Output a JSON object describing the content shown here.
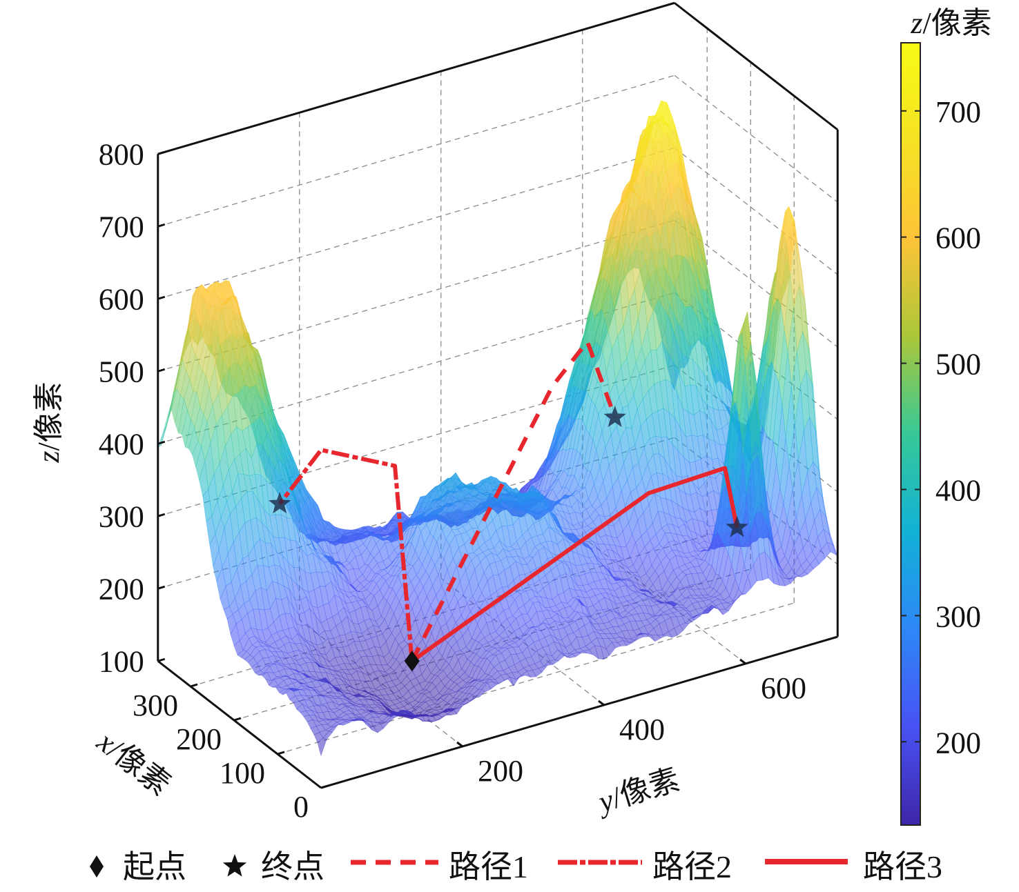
{
  "chart_data": {
    "type": "surface3d",
    "xlabel": {
      "var": "x",
      "unit": "/像素"
    },
    "ylabel": {
      "var": "y",
      "unit": "/像素"
    },
    "zlabel": {
      "var": "z",
      "unit": "/像素"
    },
    "xlim": [
      0,
      375
    ],
    "ylim": [
      0,
      730
    ],
    "zlim": [
      100,
      800
    ],
    "x_ticks": [
      "0",
      "100",
      "200",
      "300"
    ],
    "y_ticks": [
      "200",
      "400",
      "600"
    ],
    "z_ticks": [
      "100",
      "200",
      "300",
      "400",
      "500",
      "600",
      "700",
      "800"
    ],
    "grid": true,
    "colormap": "parula",
    "colorbar": {
      "label": {
        "var": "z",
        "unit": "/像素"
      },
      "range": [
        134,
        754
      ],
      "ticks": [
        "200",
        "300",
        "400",
        "500",
        "600",
        "700"
      ]
    },
    "surface": {
      "base_z": 180,
      "peaks": [
        {
          "x": 330,
          "y": 60,
          "z": 600
        },
        {
          "x": 300,
          "y": 670,
          "z": 700
        },
        {
          "x": 250,
          "y": 580,
          "z": 560
        },
        {
          "x": 100,
          "y": 720,
          "z": 620
        },
        {
          "x": 50,
          "y": 630,
          "z": 560
        },
        {
          "x": 200,
          "y": 350,
          "z": 330
        }
      ],
      "valley": {
        "x": 100,
        "y": 190,
        "z": 130
      }
    },
    "start": {
      "x": 100,
      "y": 190,
      "z": 174
    },
    "series": [
      {
        "name": "路径1",
        "style": "dashed",
        "color": "#e8262e",
        "points": [
          [
            100,
            190,
            174
          ],
          [
            230,
            468,
            413
          ],
          [
            250,
            530,
            448
          ],
          [
            250,
            569,
            332
          ]
        ]
      },
      {
        "name": "路径2",
        "style": "dashdot",
        "color": "#e8262e",
        "points": [
          [
            100,
            190,
            174
          ],
          [
            110,
            172,
            444
          ],
          [
            200,
            123,
            438
          ],
          [
            230,
            83,
            361
          ]
        ]
      },
      {
        "name": "路径3",
        "style": "solid",
        "color": "#e8262e",
        "points": [
          [
            100,
            190,
            174
          ],
          [
            130,
            543,
            291
          ],
          [
            150,
            663,
            282
          ],
          [
            150,
            680,
            195
          ]
        ]
      }
    ],
    "legend": {
      "position": "bottom",
      "start_label": "起点",
      "end_label": "终点",
      "items": [
        "路径1",
        "路径2",
        "路径3"
      ]
    }
  }
}
